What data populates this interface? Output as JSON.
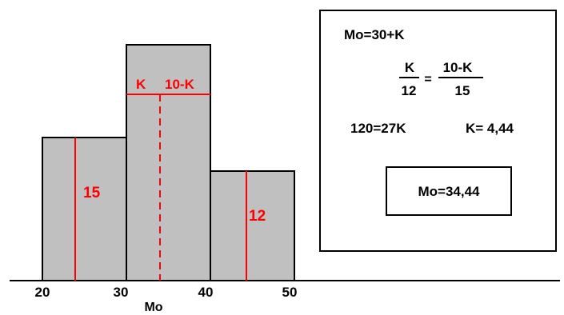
{
  "histogram": {
    "bins": [
      {
        "from": 20,
        "to": 30,
        "height_label": "15"
      },
      {
        "from": 30,
        "to": 40,
        "height_label": ""
      },
      {
        "from": 40,
        "to": 50,
        "height_label": "12"
      }
    ],
    "x_ticks": [
      "20",
      "30",
      "40",
      "50"
    ],
    "mode_label": "Mo",
    "modal_split": {
      "left": "K",
      "right": "10-K"
    }
  },
  "colors": {
    "bar_fill": "#c0c0c0",
    "outline": "#000000",
    "annotation": "#ff0000"
  },
  "formula_box": {
    "line1": "Mo=30+K",
    "fraction_left": {
      "numerator": "K",
      "denominator": "12"
    },
    "equals": "=",
    "fraction_right": {
      "numerator": "10-K",
      "denominator": "15"
    },
    "eq1": "120=27K",
    "eq2": "K= 4,44",
    "result": "Mo=34,44"
  }
}
